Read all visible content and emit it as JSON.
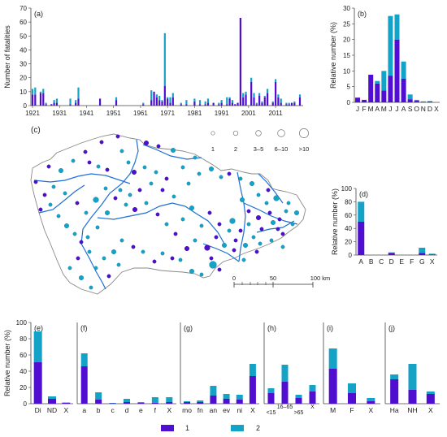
{
  "colors": {
    "series1": "#4f0ed0",
    "series2": "#14a3c7",
    "river": "#1f6fd6",
    "border": "#888888"
  },
  "legend": {
    "s1": "1",
    "s2": "2"
  },
  "chart_data": [
    {
      "id": "a",
      "panel": "(a)",
      "type": "bar",
      "stacked": true,
      "ylabel": "Number of fatalities",
      "ylim": [
        0,
        70
      ],
      "yticks": [
        "0",
        "10",
        "20",
        "30",
        "40",
        "50",
        "60",
        "70"
      ],
      "xticks": [
        {
          "year": 1921,
          "label": "1921"
        },
        {
          "year": 1931,
          "label": "1931"
        },
        {
          "year": 1941,
          "label": "1941"
        },
        {
          "year": 1951,
          "label": "1951"
        },
        {
          "year": 1961,
          "label": "1961"
        },
        {
          "year": 1971,
          "label": "1971"
        },
        {
          "year": 1981,
          "label": "1981"
        },
        {
          "year": 1991,
          "label": "1991"
        },
        {
          "year": 2001,
          "label": "2001"
        },
        {
          "year": 2011,
          "label": "2011"
        }
      ],
      "xrange": [
        1921,
        2020
      ],
      "years": [
        1921,
        1922,
        1924,
        1925,
        1926,
        1928,
        1929,
        1930,
        1935,
        1937,
        1938,
        1946,
        1952,
        1962,
        1965,
        1966,
        1967,
        1968,
        1969,
        1970,
        1971,
        1972,
        1973,
        1976,
        1978,
        1981,
        1983,
        1985,
        1986,
        1988,
        1990,
        1991,
        1993,
        1994,
        1995,
        1996,
        1997,
        1998,
        1999,
        2000,
        2002,
        2003,
        2004,
        2005,
        2006,
        2007,
        2008,
        2010,
        2011,
        2012,
        2013,
        2015,
        2016,
        2017,
        2018,
        2020
      ],
      "series1": [
        8,
        8,
        9,
        9,
        1,
        1,
        2,
        2,
        1,
        2,
        5,
        5,
        4,
        1,
        4,
        10,
        6,
        4,
        3,
        14,
        5,
        2,
        6,
        1,
        1,
        3,
        1,
        1,
        2,
        2,
        1,
        2,
        1,
        5,
        2,
        1,
        2,
        63,
        6,
        8,
        17,
        6,
        1,
        7,
        2,
        6,
        9,
        2,
        17,
        6,
        2,
        1,
        1,
        2,
        2,
        6
      ],
      "series2": [
        4,
        5,
        1,
        3,
        1,
        0,
        2,
        3,
        4,
        2,
        8,
        0,
        2,
        1,
        7,
        0,
        2,
        3,
        1,
        38,
        1,
        4,
        3,
        1,
        3,
        2,
        3,
        2,
        3,
        0,
        1,
        2,
        5,
        1,
        2,
        0,
        0,
        0,
        3,
        2,
        3,
        3,
        1,
        2,
        1,
        1,
        3,
        1,
        2,
        2,
        3,
        1,
        1,
        0,
        1,
        2
      ]
    },
    {
      "id": "b",
      "panel": "(b)",
      "type": "bar",
      "stacked": true,
      "ylabel": "Relative number (%)",
      "ylim": [
        0,
        30
      ],
      "yticks": [
        "0",
        "5",
        "10",
        "15",
        "20",
        "25",
        "30"
      ],
      "categories": [
        "J",
        "F",
        "M",
        "A",
        "M",
        "J",
        "J",
        "A",
        "S",
        "O",
        "N",
        "D",
        "X"
      ],
      "series1": [
        1.5,
        0.8,
        8.8,
        6.0,
        3.8,
        8.5,
        20.0,
        7.5,
        1.0,
        0.5,
        0.2,
        0.3,
        0.0
      ],
      "series2": [
        0.0,
        0.0,
        0.0,
        0.8,
        6.2,
        19.0,
        8.0,
        5.5,
        1.5,
        0.3,
        0.1,
        0.1,
        0.0
      ]
    },
    {
      "id": "d",
      "panel": "(d)",
      "type": "bar",
      "stacked": true,
      "ylabel": "Relative number (%)",
      "ylim": [
        0,
        100
      ],
      "yticks": [
        "0",
        "20",
        "40",
        "60",
        "80",
        "100"
      ],
      "categories": [
        "A",
        "B",
        "C",
        "D",
        "E",
        "F",
        "G",
        "X"
      ],
      "series1": [
        50,
        0,
        0,
        3,
        0,
        0,
        3,
        1
      ],
      "series2": [
        30,
        0,
        0,
        1,
        0,
        0,
        8,
        1
      ]
    },
    {
      "id": "e",
      "panel": "(e)",
      "type": "bar",
      "stacked": true,
      "ylabel": "Relative number (%)",
      "ylim": [
        0,
        100
      ],
      "yticks": [
        "0",
        "20",
        "40",
        "60",
        "80",
        "100"
      ],
      "categories": [
        "Di",
        "ND",
        "X"
      ],
      "series1": [
        51,
        6,
        1
      ],
      "series2": [
        38,
        3,
        0.5
      ]
    },
    {
      "id": "f",
      "panel": "(f)",
      "type": "bar",
      "stacked": true,
      "ylim": [
        0,
        100
      ],
      "categories": [
        "a",
        "b",
        "c",
        "d",
        "e",
        "f",
        "X"
      ],
      "series1": [
        46,
        5,
        0.5,
        2,
        1,
        1,
        2
      ],
      "series2": [
        16,
        9,
        0.5,
        4,
        1,
        7,
        6
      ]
    },
    {
      "id": "g",
      "panel": "(g)",
      "type": "bar",
      "stacked": true,
      "ylim": [
        0,
        100
      ],
      "categories": [
        "mo",
        "fn",
        "an",
        "ev",
        "ni",
        "X"
      ],
      "series1": [
        2,
        2,
        10,
        6,
        5,
        34
      ],
      "series2": [
        1,
        2,
        12,
        6,
        6,
        15
      ]
    },
    {
      "id": "h",
      "panel": "(h)",
      "type": "bar",
      "stacked": true,
      "ylim": [
        0,
        100
      ],
      "categories": [
        "<15",
        "16–65",
        ">65",
        "X"
      ],
      "series1": [
        13,
        27,
        7,
        15
      ],
      "series2": [
        6,
        21,
        4,
        8
      ]
    },
    {
      "id": "i",
      "panel": "(i)",
      "type": "bar",
      "stacked": true,
      "ylim": [
        0,
        100
      ],
      "categories": [
        "M",
        "F",
        "X"
      ],
      "series1": [
        43,
        13,
        3
      ],
      "series2": [
        25,
        12,
        4
      ]
    },
    {
      "id": "j",
      "panel": "(j)",
      "type": "bar",
      "stacked": true,
      "ylim": [
        0,
        100
      ],
      "categories": [
        "Ha",
        "NH",
        "X"
      ],
      "series1": [
        30,
        17,
        12
      ],
      "series2": [
        6,
        32,
        3
      ]
    }
  ],
  "map": {
    "panel": "(c)",
    "size_legend": [
      "1",
      "2",
      "3–5",
      "6–10",
      ">10"
    ],
    "scale_labels": [
      "0",
      "50",
      "100 km"
    ]
  }
}
